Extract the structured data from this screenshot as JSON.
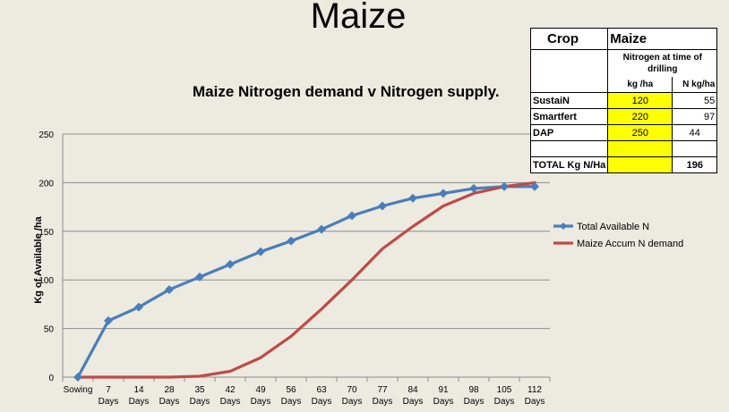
{
  "slide_title": "Maize",
  "table": {
    "header_left": "Crop",
    "header_right": "Maize",
    "subheader": "Nitrogen at time of drilling",
    "col_kg": "kg /ha",
    "col_n": "N kg/ha",
    "rows": [
      {
        "label": "SustaiN",
        "kg": "120",
        "n": "55"
      },
      {
        "label": "Smartfert",
        "kg": "220",
        "n": "97"
      },
      {
        "label": "DAP",
        "kg": "250",
        "n": "44"
      },
      {
        "label": "",
        "kg": "",
        "n": ""
      }
    ],
    "total_label": "TOTAL  Kg N/Ha",
    "total_value": "196",
    "highlight_color": "#ffff00"
  },
  "chart_data": {
    "type": "line",
    "title": "Maize Nitrogen demand v Nitrogen supply.",
    "ylabel": "Kg of Available /ha",
    "xlabel": "",
    "ylim": [
      0,
      250
    ],
    "yticks": [
      0,
      50,
      100,
      150,
      200,
      250
    ],
    "grid": true,
    "legend_position": "right",
    "categories": [
      [
        "Sowing"
      ],
      [
        "7",
        "Days"
      ],
      [
        "14",
        "Days"
      ],
      [
        "28",
        "Days"
      ],
      [
        "35",
        "Days"
      ],
      [
        "42",
        "Days"
      ],
      [
        "49",
        "Days"
      ],
      [
        "56",
        "Days"
      ],
      [
        "63",
        "Days"
      ],
      [
        "70",
        "Days"
      ],
      [
        "77",
        "Days"
      ],
      [
        "84",
        "Days"
      ],
      [
        "91",
        "Days"
      ],
      [
        "98",
        "Days"
      ],
      [
        "105",
        "Days"
      ],
      [
        "112",
        "Days"
      ]
    ],
    "series": [
      {
        "name": "Total Available N",
        "color": "#4a7ebb",
        "marker": "diamond",
        "values": [
          0,
          58,
          72,
          90,
          103,
          116,
          129,
          140,
          152,
          166,
          176,
          184,
          189,
          194,
          196,
          196
        ]
      },
      {
        "name": "Maize Accum N demand",
        "color": "#be4b48",
        "marker": "none",
        "values": [
          0,
          0,
          0,
          0,
          1,
          6,
          20,
          42,
          70,
          100,
          132,
          155,
          176,
          189,
          196,
          200
        ]
      }
    ]
  }
}
